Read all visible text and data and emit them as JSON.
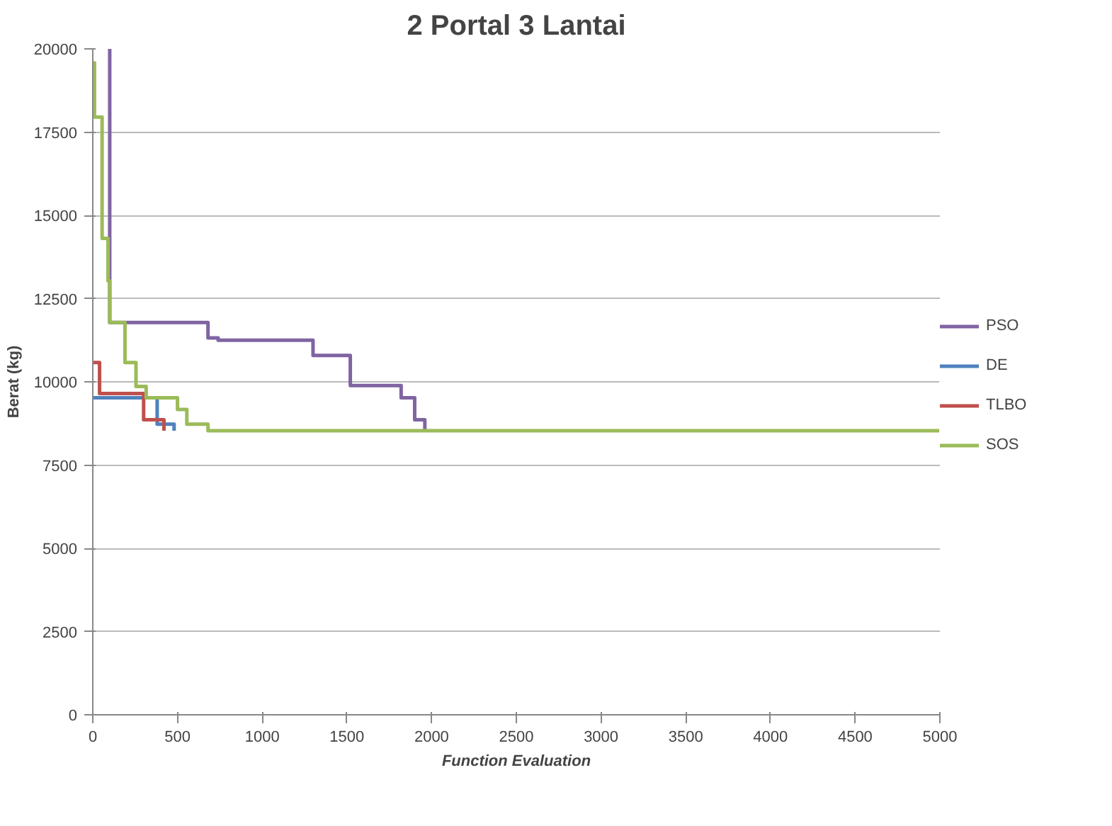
{
  "chart_data": {
    "type": "step",
    "title": "2 Portal 3 Lantai",
    "xlabel": "Function Evaluation",
    "ylabel": "Berat (kg)",
    "xlim": [
      0,
      5000
    ],
    "xticks": [
      0,
      500,
      1000,
      1500,
      2000,
      2500,
      3000,
      3500,
      4000,
      4500,
      5000
    ],
    "ylim": [
      0,
      20000
    ],
    "yticks": [
      0,
      2500,
      5000,
      7500,
      10000,
      12500,
      15000,
      17500,
      20000
    ],
    "grid": "y",
    "legend": "right",
    "line_style": "solid",
    "series": [
      {
        "name": "PSO",
        "color": "#8064a2",
        "x": [
          100,
          100,
          680,
          740,
          1300,
          1520,
          1820,
          1900,
          1960
        ],
        "values": [
          20000,
          11780,
          11320,
          11250,
          10790,
          9890,
          9520,
          8860,
          8530
        ]
      },
      {
        "name": "DE",
        "color": "#4f81bd",
        "x": [
          0,
          380,
          480
        ],
        "values": [
          9520,
          8730,
          8530
        ]
      },
      {
        "name": "TLBO",
        "color": "#c0504d",
        "x": [
          0,
          40,
          300,
          420
        ],
        "values": [
          10580,
          9650,
          8860,
          8530
        ]
      },
      {
        "name": "SOS",
        "color": "#9bbb59",
        "x": [
          0,
          10,
          55,
          90,
          100,
          190,
          255,
          315,
          500,
          555,
          680,
          5000
        ],
        "values": [
          19580,
          17950,
          14310,
          13030,
          11780,
          10580,
          9860,
          9520,
          9170,
          8730,
          8530,
          8530
        ]
      }
    ]
  }
}
